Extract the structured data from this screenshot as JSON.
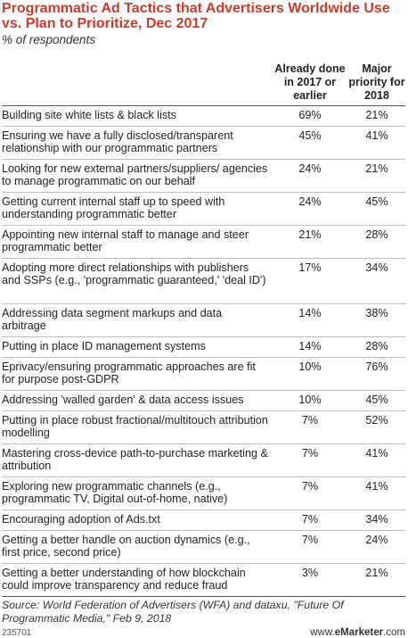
{
  "title": "Programmatic Ad Tactics that Advertisers Worldwide Use vs. Plan to Prioritize, Dec 2017",
  "subtitle": "% of respondents",
  "columns": [
    "Already done in 2017 or earlier",
    "Major priority for 2018"
  ],
  "chart_data": {
    "type": "table",
    "title": "Programmatic Ad Tactics that Advertisers Worldwide Use vs. Plan to Prioritize, Dec 2017",
    "subtitle": "% of respondents",
    "columns": [
      "Already done in 2017 or earlier",
      "Major priority for 2018"
    ],
    "rows": [
      {
        "label": "Building site white lists & black lists",
        "done": "69%",
        "priority": "21%"
      },
      {
        "label": "Ensuring we have a fully disclosed/transparent relationship with our programmatic partners",
        "done": "45%",
        "priority": "41%"
      },
      {
        "label": "Looking for new external partners/suppliers/ agencies to manage programmatic on our behalf",
        "done": "24%",
        "priority": "21%"
      },
      {
        "label": "Getting current internal staff up to speed with understanding programmatic better",
        "done": "24%",
        "priority": "45%"
      },
      {
        "label": "Appointing new internal staff to manage and steer programmatic better",
        "done": "21%",
        "priority": "28%"
      },
      {
        "label": "Adopting more direct relationships with publishers and SSPs (e.g., 'programmatic guaranteed,' 'deal ID')",
        "done": "17%",
        "priority": "34%"
      },
      {
        "label": "Addressing data segment markups and data arbitrage",
        "done": "14%",
        "priority": "38%"
      },
      {
        "label": "Putting in place ID management systems",
        "done": "14%",
        "priority": "28%"
      },
      {
        "label": "Eprivacy/ensuring programmatic approaches are fit for purpose post-GDPR",
        "done": "10%",
        "priority": "76%"
      },
      {
        "label": "Addressing 'walled garden' & data access issues",
        "done": "10%",
        "priority": "45%"
      },
      {
        "label": "Putting in place robust fractional/multitouch attribution modelling",
        "done": "7%",
        "priority": "52%"
      },
      {
        "label": "Mastering cross-device path-to-purchase marketing & attribution",
        "done": "7%",
        "priority": "41%"
      },
      {
        "label": "Exploring new programmatic channels (e.g., programmatic TV, Digital out-of-home, native)",
        "done": "7%",
        "priority": "41%"
      },
      {
        "label": "Encouraging adoption of Ads.txt",
        "done": "7%",
        "priority": "34%"
      },
      {
        "label": "Getting a better handle on auction dynamics (e.g., first price, second price)",
        "done": "7%",
        "priority": "24%"
      },
      {
        "label": "Getting a better understanding of how blockchain could improve transparency and reduce fraud",
        "done": "3%",
        "priority": "21%"
      }
    ]
  },
  "source": "Source: World Federation of Advertisers (WFA) and dataxu, \"Future Of Programmatic Media,\" Feb 9, 2018",
  "chart_id": "235701",
  "brand_prefix": "www.",
  "brand_name": "eMarketer",
  "brand_suffix": ".com"
}
